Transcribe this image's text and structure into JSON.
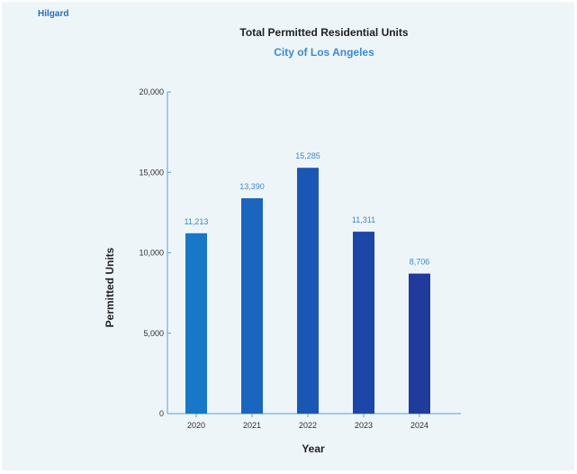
{
  "brand": "Hilgard",
  "chart_data": {
    "type": "bar",
    "title": "Total Permitted Residential Units",
    "subtitle": "City of Los Angeles",
    "xlabel": "Year",
    "ylabel": "Permitted Units",
    "categories": [
      "2020",
      "2021",
      "2022",
      "2023",
      "2024"
    ],
    "values": [
      11213,
      13390,
      15285,
      11311,
      8706
    ],
    "value_labels": [
      "11,213",
      "13,390",
      "15,285",
      "11,311",
      "8,706"
    ],
    "ylim": [
      0,
      20000
    ],
    "yticks": [
      0,
      5000,
      10000,
      15000,
      20000
    ],
    "ytick_labels": [
      "0",
      "5,000",
      "10,000",
      "15,000",
      "20,000"
    ],
    "grid": false,
    "colors": [
      "#1877c6",
      "#1a66be",
      "#1a56b4",
      "#1c47a9",
      "#1f3c9c"
    ],
    "axis_color": "#5a9fd6"
  }
}
